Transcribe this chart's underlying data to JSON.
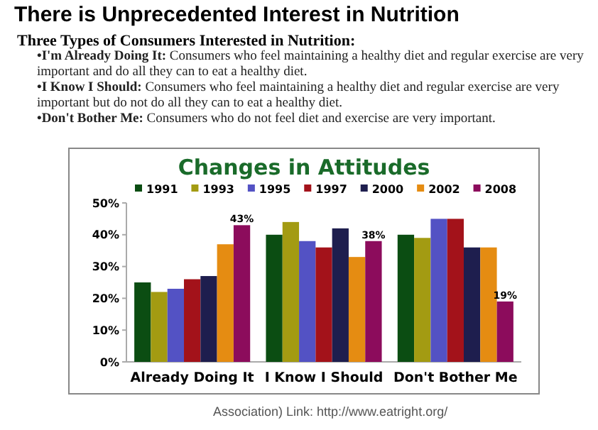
{
  "chart_data": {
    "type": "bar",
    "title": "There is Unprecedented Interest in Nutrition",
    "subtitle": "Changes in Attitudes",
    "annotations": [
      "Three Types of Consumers Interested in Nutrition:",
      "•I'm Already Doing It: Consumers who feel maintaining a healthy diet and regular exercise are very important and do all they can to eat a healthy diet.",
      "•I Know I Should: Consumers who feel maintaining a healthy diet and regular exercise are very important but do not do all they can to eat a healthy diet.",
      "•Don't Bother Me: Consumers who do not feel diet and exercise are very important.",
      "Association) Link: http://www.eatright.org/"
    ],
    "categories": [
      "Already Doing It",
      "I Know I Should",
      "Don't Bother Me"
    ],
    "series": [
      {
        "name": "1991",
        "color": "#0b4d12",
        "values": [
          25,
          40,
          40
        ]
      },
      {
        "name": "1993",
        "color": "#a39b12",
        "values": [
          22,
          44,
          39
        ]
      },
      {
        "name": "1995",
        "color": "#5352c4",
        "values": [
          23,
          38,
          45
        ]
      },
      {
        "name": "1997",
        "color": "#a3121a",
        "values": [
          26,
          36,
          45
        ]
      },
      {
        "name": "2000",
        "color": "#1e1e4e",
        "values": [
          27,
          42,
          36
        ]
      },
      {
        "name": "2002",
        "color": "#e58c12",
        "values": [
          37,
          33,
          36
        ]
      },
      {
        "name": "2008",
        "color": "#8c0c5c",
        "values": [
          43,
          38,
          19
        ],
        "value_labels": [
          "43%",
          "38%",
          "19%"
        ]
      }
    ],
    "ylim": [
      0,
      50
    ],
    "yticks": [
      {
        "value": 0,
        "label": "0%"
      },
      {
        "value": 10,
        "label": "10%"
      },
      {
        "value": 20,
        "label": "20%"
      },
      {
        "value": 30,
        "label": "30%"
      },
      {
        "value": 40,
        "label": "40%"
      },
      {
        "value": 50,
        "label": "50%"
      }
    ],
    "legend": "top",
    "grid": false
  }
}
